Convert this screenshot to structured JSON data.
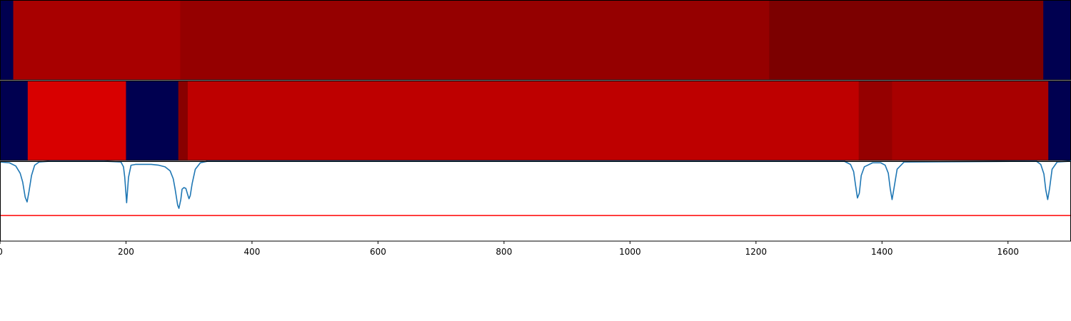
{
  "chart_data": [
    {
      "type": "heatmap",
      "x_range": [
        0,
        1700
      ],
      "segments": [
        {
          "start": 0,
          "end": 21,
          "color": "#000050"
        },
        {
          "start": 21,
          "end": 286,
          "color": "#a80000"
        },
        {
          "start": 286,
          "end": 1221,
          "color": "#950000"
        },
        {
          "start": 1221,
          "end": 1656,
          "color": "#7c0000"
        },
        {
          "start": 1656,
          "end": 1700,
          "color": "#000050"
        }
      ]
    },
    {
      "type": "heatmap",
      "x_range": [
        0,
        1700
      ],
      "segments": [
        {
          "start": 0,
          "end": 44,
          "color": "#000050"
        },
        {
          "start": 44,
          "end": 200,
          "color": "#d80000"
        },
        {
          "start": 200,
          "end": 283,
          "color": "#000050"
        },
        {
          "start": 283,
          "end": 298,
          "color": "#880000"
        },
        {
          "start": 298,
          "end": 1363,
          "color": "#be0000"
        },
        {
          "start": 1363,
          "end": 1416,
          "color": "#950000"
        },
        {
          "start": 1416,
          "end": 1664,
          "color": "#a80000"
        },
        {
          "start": 1664,
          "end": 1700,
          "color": "#000050"
        }
      ]
    },
    {
      "type": "line",
      "xlim": [
        0,
        1700
      ],
      "ylim": [
        0,
        1
      ],
      "grid": false,
      "series": [
        {
          "color": "#1f77b4",
          "points": [
            [
              0,
              0.99
            ],
            [
              15,
              0.98
            ],
            [
              25,
              0.94
            ],
            [
              32,
              0.85
            ],
            [
              36,
              0.74
            ],
            [
              40,
              0.55
            ],
            [
              43,
              0.49
            ],
            [
              46,
              0.62
            ],
            [
              50,
              0.82
            ],
            [
              55,
              0.95
            ],
            [
              62,
              0.99
            ],
            [
              80,
              1.0
            ],
            [
              165,
              1.0
            ],
            [
              192,
              0.99
            ],
            [
              196,
              0.93
            ],
            [
              198,
              0.8
            ],
            [
              201,
              0.48
            ],
            [
              204,
              0.8
            ],
            [
              208,
              0.95
            ],
            [
              215,
              0.96
            ],
            [
              240,
              0.96
            ],
            [
              252,
              0.95
            ],
            [
              262,
              0.93
            ],
            [
              270,
              0.88
            ],
            [
              275,
              0.78
            ],
            [
              278,
              0.65
            ],
            [
              282,
              0.45
            ],
            [
              284,
              0.41
            ],
            [
              287,
              0.52
            ],
            [
              289,
              0.65
            ],
            [
              292,
              0.67
            ],
            [
              295,
              0.66
            ],
            [
              298,
              0.58
            ],
            [
              300,
              0.53
            ],
            [
              302,
              0.57
            ],
            [
              305,
              0.72
            ],
            [
              310,
              0.9
            ],
            [
              318,
              0.98
            ],
            [
              330,
              1.0
            ],
            [
              1340,
              1.0
            ],
            [
              1350,
              0.96
            ],
            [
              1355,
              0.87
            ],
            [
              1358,
              0.7
            ],
            [
              1361,
              0.54
            ],
            [
              1364,
              0.6
            ],
            [
              1367,
              0.82
            ],
            [
              1372,
              0.93
            ],
            [
              1385,
              0.98
            ],
            [
              1398,
              0.98
            ],
            [
              1405,
              0.95
            ],
            [
              1410,
              0.85
            ],
            [
              1413,
              0.66
            ],
            [
              1416,
              0.52
            ],
            [
              1419,
              0.66
            ],
            [
              1424,
              0.9
            ],
            [
              1435,
              0.99
            ],
            [
              1645,
              1.0
            ],
            [
              1652,
              0.96
            ],
            [
              1657,
              0.84
            ],
            [
              1660,
              0.64
            ],
            [
              1663,
              0.52
            ],
            [
              1666,
              0.66
            ],
            [
              1670,
              0.9
            ],
            [
              1678,
              0.99
            ],
            [
              1700,
              1.0
            ]
          ]
        }
      ],
      "reference_line": {
        "y": 0.32,
        "color": "#ff0000"
      },
      "x_ticks": [
        {
          "value": 0,
          "label": "0"
        },
        {
          "value": 200,
          "label": "200"
        },
        {
          "value": 400,
          "label": "400"
        },
        {
          "value": 600,
          "label": "600"
        },
        {
          "value": 800,
          "label": "800"
        },
        {
          "value": 1000,
          "label": "1000"
        },
        {
          "value": 1200,
          "label": "1200"
        },
        {
          "value": 1400,
          "label": "1400"
        },
        {
          "value": 1600,
          "label": "1600"
        }
      ]
    }
  ]
}
